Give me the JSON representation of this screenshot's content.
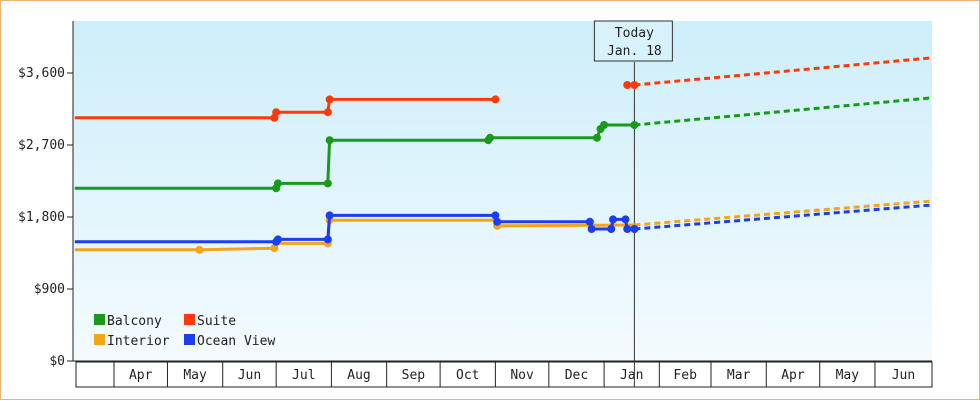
{
  "chart_data": {
    "type": "line",
    "title": "",
    "xlabel": "",
    "ylabel": "",
    "ylim": [
      0,
      4250
    ],
    "y_ticks": [
      0,
      900,
      1800,
      2700,
      3600
    ],
    "y_tick_labels": [
      "$0",
      "$900",
      "$1,800",
      "$2,700",
      "$3,600"
    ],
    "x_range": [
      "2023-03-09",
      "2024-07-03"
    ],
    "x_ticks": [
      {
        "label": "Apr",
        "start": "2023-04-01"
      },
      {
        "label": "May",
        "start": "2023-05-01"
      },
      {
        "label": "Jun",
        "start": "2023-06-01"
      },
      {
        "label": "Jul",
        "start": "2023-07-01"
      },
      {
        "label": "Aug",
        "start": "2023-08-01"
      },
      {
        "label": "Sep",
        "start": "2023-09-01"
      },
      {
        "label": "Oct",
        "start": "2023-10-01"
      },
      {
        "label": "Nov",
        "start": "2023-11-01"
      },
      {
        "label": "Dec",
        "start": "2023-12-01"
      },
      {
        "label": "Jan",
        "start": "2024-01-01"
      },
      {
        "label": "Feb",
        "start": "2024-02-01"
      },
      {
        "label": "Mar",
        "start": "2024-03-01"
      },
      {
        "label": "Apr",
        "start": "2024-04-01"
      },
      {
        "label": "May",
        "start": "2024-05-01"
      },
      {
        "label": "Jun",
        "start": "2024-06-01"
      }
    ],
    "today": {
      "date": "2024-01-18",
      "line1": "Today",
      "line2": "Jan. 18"
    },
    "grid": false,
    "legend_position": "bottom-left",
    "series": [
      {
        "name": "Balcony",
        "color": "#1a9a1a",
        "history": [
          {
            "date": "2023-03-10",
            "value": 2160
          },
          {
            "date": "2023-07-01",
            "value": 2160
          },
          {
            "date": "2023-07-02",
            "value": 2220
          },
          {
            "date": "2023-07-30",
            "value": 2220
          },
          {
            "date": "2023-07-31",
            "value": 2760
          },
          {
            "date": "2023-10-28",
            "value": 2760
          },
          {
            "date": "2023-10-29",
            "value": 2790
          },
          {
            "date": "2023-12-28",
            "value": 2790
          },
          {
            "date": "2023-12-30",
            "value": 2900
          },
          {
            "date": "2024-01-01",
            "value": 2950
          },
          {
            "date": "2024-01-18",
            "value": 2950
          }
        ],
        "history_markers": [
          "2023-07-01",
          "2023-07-02",
          "2023-07-30",
          "2023-07-31",
          "2023-10-28",
          "2023-10-29",
          "2023-12-28",
          "2023-12-30",
          "2024-01-01",
          "2024-01-18"
        ],
        "projection": [
          {
            "date": "2024-01-18",
            "value": 2950
          },
          {
            "date": "2024-07-03",
            "value": 3290
          }
        ]
      },
      {
        "name": "Suite",
        "color": "#ff3a0a",
        "history": [
          {
            "date": "2023-03-10",
            "value": 3040
          },
          {
            "date": "2023-06-30",
            "value": 3040
          },
          {
            "date": "2023-07-01",
            "value": 3110
          },
          {
            "date": "2023-07-30",
            "value": 3110
          },
          {
            "date": "2023-07-31",
            "value": 3270
          },
          {
            "date": "2023-11-01",
            "value": 3270
          }
        ],
        "history_markers": [
          "2023-06-30",
          "2023-07-01",
          "2023-07-30",
          "2023-07-31",
          "2023-11-01"
        ],
        "history2": [
          {
            "date": "2024-01-14",
            "value": 3450
          },
          {
            "date": "2024-01-18",
            "value": 3450
          }
        ],
        "history2_markers": [
          "2024-01-14",
          "2024-01-18"
        ],
        "projection": [
          {
            "date": "2024-01-18",
            "value": 3450
          },
          {
            "date": "2024-07-03",
            "value": 3790
          }
        ]
      },
      {
        "name": "Interior",
        "color": "#f5a418",
        "history": [
          {
            "date": "2023-03-10",
            "value": 1390
          },
          {
            "date": "2023-05-19",
            "value": 1390
          },
          {
            "date": "2023-06-30",
            "value": 1410
          },
          {
            "date": "2023-07-01",
            "value": 1470
          },
          {
            "date": "2023-07-30",
            "value": 1470
          },
          {
            "date": "2023-07-31",
            "value": 1760
          },
          {
            "date": "2023-11-01",
            "value": 1760
          },
          {
            "date": "2023-11-02",
            "value": 1690
          },
          {
            "date": "2024-01-18",
            "value": 1700
          }
        ],
        "history_markers": [
          "2023-05-19",
          "2023-06-30",
          "2023-07-30",
          "2023-07-31",
          "2023-11-02"
        ],
        "projection": [
          {
            "date": "2024-01-18",
            "value": 1700
          },
          {
            "date": "2024-07-03",
            "value": 2000
          }
        ]
      },
      {
        "name": "Ocean View",
        "color": "#1a3ef0",
        "history": [
          {
            "date": "2023-03-10",
            "value": 1490
          },
          {
            "date": "2023-07-01",
            "value": 1490
          },
          {
            "date": "2023-07-02",
            "value": 1520
          },
          {
            "date": "2023-07-30",
            "value": 1520
          },
          {
            "date": "2023-07-31",
            "value": 1820
          },
          {
            "date": "2023-11-01",
            "value": 1820
          },
          {
            "date": "2023-11-02",
            "value": 1740
          },
          {
            "date": "2023-12-24",
            "value": 1740
          },
          {
            "date": "2023-12-25",
            "value": 1650
          },
          {
            "date": "2024-01-05",
            "value": 1650
          },
          {
            "date": "2024-01-06",
            "value": 1770
          },
          {
            "date": "2024-01-13",
            "value": 1770
          },
          {
            "date": "2024-01-14",
            "value": 1650
          },
          {
            "date": "2024-01-18",
            "value": 1650
          }
        ],
        "history_markers": [
          "2023-07-01",
          "2023-07-02",
          "2023-07-30",
          "2023-07-31",
          "2023-11-01",
          "2023-11-02",
          "2023-12-24",
          "2023-12-25",
          "2024-01-05",
          "2024-01-06",
          "2024-01-13",
          "2024-01-14",
          "2024-01-18"
        ],
        "projection": [
          {
            "date": "2024-01-18",
            "value": 1650
          },
          {
            "date": "2024-07-03",
            "value": 1950
          }
        ]
      }
    ]
  }
}
